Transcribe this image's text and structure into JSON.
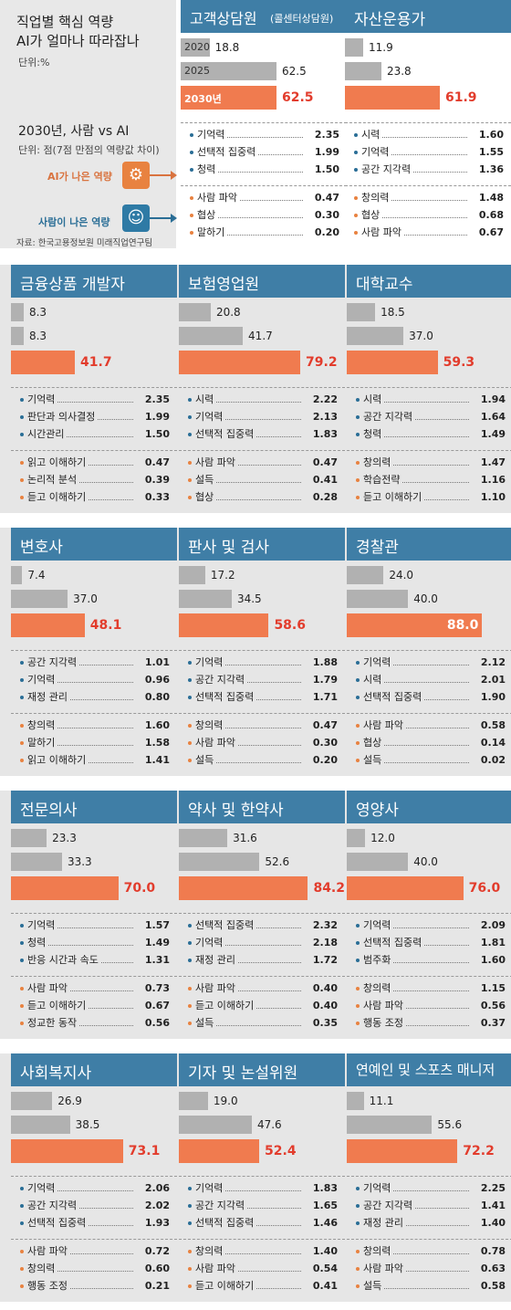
{
  "intro": {
    "title_line1": "직업별 핵심 역량",
    "title_line2": "AI가 얼마나 따라잡나",
    "unit1": "단위:%",
    "legend_2020": "2020",
    "legend_2025": "2025",
    "legend_2030": "2030년",
    "section_title": "2030년, 사람 vs AI",
    "unit2": "단위: 점(7점 만점의 역량값 차이)",
    "ai_label": "AI가 나은 역량",
    "human_label": "사람이 나은 역량",
    "source": "자료: 한국고용정보원 미래직업연구팀",
    "ai_icon": "robot-head-icon",
    "human_icon": "human-head-icon"
  },
  "colors": {
    "header": "#3f7ea6",
    "bar_gray": "#b1b1b1",
    "bar_orange": "#f07b4f",
    "value_red": "#e23c2c",
    "band": "#e6e6e6"
  },
  "chart_data": {
    "type": "bar",
    "unit": "%",
    "years": [
      "2020",
      "2025",
      "2030년"
    ],
    "xlim": [
      0,
      100
    ],
    "jobs": [
      {
        "name": "고객상담원",
        "name_sub": "(콜센터상담원)",
        "values": [
          18.8,
          62.5,
          62.5
        ],
        "ai_better": [
          [
            "기억력",
            "2.35"
          ],
          [
            "선택적 집중력",
            "1.99"
          ],
          [
            "청력",
            "1.50"
          ]
        ],
        "human_better": [
          [
            "사람 파악",
            "0.47"
          ],
          [
            "협상",
            "0.30"
          ],
          [
            "말하기",
            "0.20"
          ]
        ]
      },
      {
        "name": "자산운용가",
        "name_sub": "",
        "values": [
          11.9,
          23.8,
          61.9
        ],
        "ai_better": [
          [
            "시력",
            "1.60"
          ],
          [
            "기억력",
            "1.55"
          ],
          [
            "공간 지각력",
            "1.36"
          ]
        ],
        "human_better": [
          [
            "창의력",
            "1.48"
          ],
          [
            "협상",
            "0.68"
          ],
          [
            "사람 파악",
            "0.67"
          ]
        ]
      },
      {
        "name": "금융상품 개발자",
        "name_sub": "",
        "values": [
          8.3,
          8.3,
          41.7
        ],
        "ai_better": [
          [
            "기억력",
            "2.35"
          ],
          [
            "판단과 의사결정",
            "1.99"
          ],
          [
            "시간관리",
            "1.50"
          ]
        ],
        "human_better": [
          [
            "읽고 이해하기",
            "0.47"
          ],
          [
            "논리적 분석",
            "0.39"
          ],
          [
            "듣고 이해하기",
            "0.33"
          ]
        ]
      },
      {
        "name": "보험영업원",
        "name_sub": "",
        "values": [
          20.8,
          41.7,
          79.2
        ],
        "ai_better": [
          [
            "시력",
            "2.22"
          ],
          [
            "기억력",
            "2.13"
          ],
          [
            "선택적 집중력",
            "1.83"
          ]
        ],
        "human_better": [
          [
            "사람 파악",
            "0.47"
          ],
          [
            "설득",
            "0.41"
          ],
          [
            "협상",
            "0.28"
          ]
        ]
      },
      {
        "name": "대학교수",
        "name_sub": "",
        "values": [
          18.5,
          37.0,
          59.3
        ],
        "ai_better": [
          [
            "시력",
            "1.94"
          ],
          [
            "공간 지각력",
            "1.64"
          ],
          [
            "청력",
            "1.49"
          ]
        ],
        "human_better": [
          [
            "창의력",
            "1.47"
          ],
          [
            "학습전략",
            "1.16"
          ],
          [
            "듣고 이해하기",
            "1.10"
          ]
        ]
      },
      {
        "name": "변호사",
        "name_sub": "",
        "values": [
          7.4,
          37.0,
          48.1
        ],
        "ai_better": [
          [
            "공간 지각력",
            "1.01"
          ],
          [
            "기억력",
            "0.96"
          ],
          [
            "재정 관리",
            "0.80"
          ]
        ],
        "human_better": [
          [
            "창의력",
            "1.60"
          ],
          [
            "말하기",
            "1.58"
          ],
          [
            "읽고 이해하기",
            "1.41"
          ]
        ]
      },
      {
        "name": "판사 및 검사",
        "name_sub": "",
        "values": [
          17.2,
          34.5,
          58.6
        ],
        "ai_better": [
          [
            "기억력",
            "1.88"
          ],
          [
            "공간 지각력",
            "1.79"
          ],
          [
            "선택적 집중력",
            "1.71"
          ]
        ],
        "human_better": [
          [
            "창의력",
            "0.47"
          ],
          [
            "사람 파악",
            "0.30"
          ],
          [
            "설득",
            "0.20"
          ]
        ]
      },
      {
        "name": "경찰관",
        "name_sub": "",
        "values": [
          24.0,
          40.0,
          88.0
        ],
        "ai_better": [
          [
            "기억력",
            "2.12"
          ],
          [
            "시력",
            "2.01"
          ],
          [
            "선택적 집중력",
            "1.90"
          ]
        ],
        "human_better": [
          [
            "사람 파악",
            "0.58"
          ],
          [
            "협상",
            "0.14"
          ],
          [
            "설득",
            "0.02"
          ]
        ]
      },
      {
        "name": "전문의사",
        "name_sub": "",
        "values": [
          23.3,
          33.3,
          70.0
        ],
        "ai_better": [
          [
            "기억력",
            "1.57"
          ],
          [
            "청력",
            "1.49"
          ],
          [
            "반응 시간과 속도",
            "1.31"
          ]
        ],
        "human_better": [
          [
            "사람 파악",
            "0.73"
          ],
          [
            "듣고 이해하기",
            "0.67"
          ],
          [
            "정교한 동작",
            "0.56"
          ]
        ]
      },
      {
        "name": "약사 및 한약사",
        "name_sub": "",
        "values": [
          31.6,
          52.6,
          84.2
        ],
        "ai_better": [
          [
            "선택적 집중력",
            "2.32"
          ],
          [
            "기억력",
            "2.18"
          ],
          [
            "재정 관리",
            "1.72"
          ]
        ],
        "human_better": [
          [
            "사람 파악",
            "0.40"
          ],
          [
            "듣고 이해하기",
            "0.40"
          ],
          [
            "설득",
            "0.35"
          ]
        ]
      },
      {
        "name": "영양사",
        "name_sub": "",
        "values": [
          12.0,
          40.0,
          76.0
        ],
        "ai_better": [
          [
            "기억력",
            "2.09"
          ],
          [
            "선택적 집중력",
            "1.81"
          ],
          [
            "범주화",
            "1.60"
          ]
        ],
        "human_better": [
          [
            "창의력",
            "1.15"
          ],
          [
            "사람 파악",
            "0.56"
          ],
          [
            "행동 조정",
            "0.37"
          ]
        ]
      },
      {
        "name": "사회복지사",
        "name_sub": "",
        "values": [
          26.9,
          38.5,
          73.1
        ],
        "ai_better": [
          [
            "기억력",
            "2.06"
          ],
          [
            "공간 지각력",
            "2.02"
          ],
          [
            "선택적 집중력",
            "1.93"
          ]
        ],
        "human_better": [
          [
            "사람 파악",
            "0.72"
          ],
          [
            "창의력",
            "0.60"
          ],
          [
            "행동 조정",
            "0.21"
          ]
        ]
      },
      {
        "name": "기자 및 논설위원",
        "name_sub": "",
        "values": [
          19.0,
          47.6,
          52.4
        ],
        "ai_better": [
          [
            "기억력",
            "1.83"
          ],
          [
            "공간 지각력",
            "1.65"
          ],
          [
            "선택적 집중력",
            "1.46"
          ]
        ],
        "human_better": [
          [
            "창의력",
            "1.40"
          ],
          [
            "사람 파악",
            "0.54"
          ],
          [
            "듣고 이해하기",
            "0.41"
          ]
        ]
      },
      {
        "name": "연예인 및 스포츠 매니저",
        "name_sub": "",
        "values": [
          11.1,
          55.6,
          72.2
        ],
        "ai_better": [
          [
            "기억력",
            "2.25"
          ],
          [
            "공간 지각력",
            "1.41"
          ],
          [
            "재정 관리",
            "1.40"
          ]
        ],
        "human_better": [
          [
            "창의력",
            "0.78"
          ],
          [
            "사람 파악",
            "0.63"
          ],
          [
            "설득",
            "0.58"
          ]
        ]
      }
    ]
  }
}
